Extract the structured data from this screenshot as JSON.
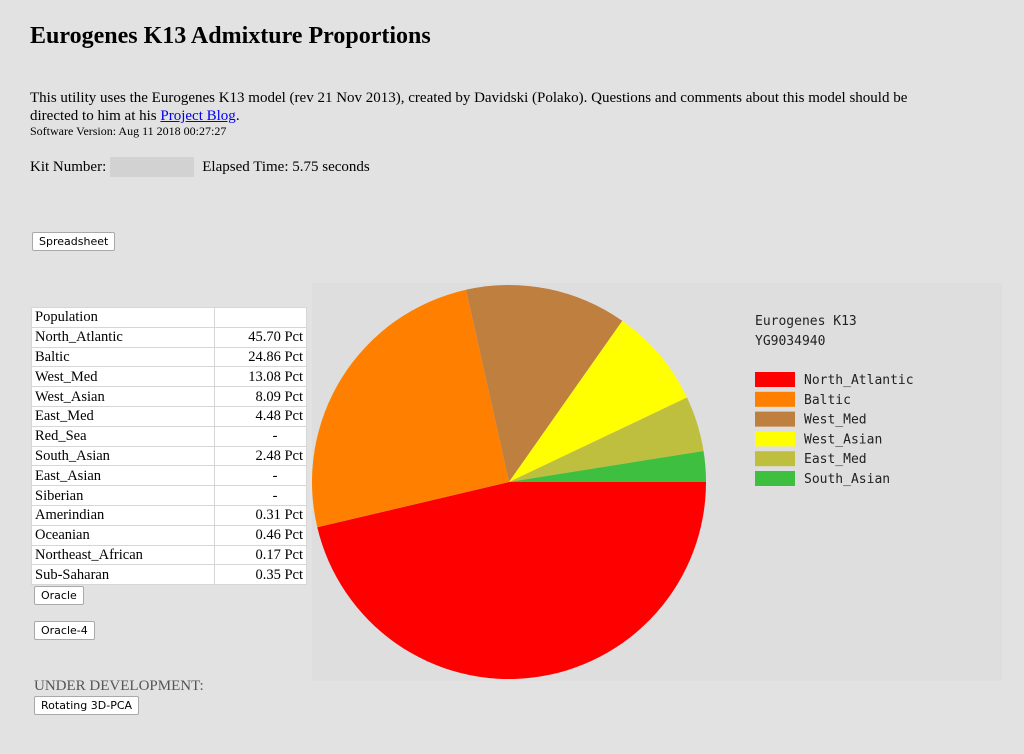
{
  "page": {
    "title": "Eurogenes K13 Admixture Proportions",
    "intro_before_link": "This utility uses the Eurogenes K13 model (rev 21 Nov 2013), created by Davidski (Polako). Questions and comments about this model should be directed to him at his ",
    "link_text": "Project Blog",
    "intro_after_link": ".",
    "software_version": "Software Version: Aug 11 2018 00:27:27",
    "kit_label": "Kit Number:",
    "elapsed_time": "Elapsed Time: 5.75 seconds",
    "under_development": "UNDER DEVELOPMENT:"
  },
  "buttons": {
    "spreadsheet": "Spreadsheet",
    "oracle": "Oracle",
    "oracle4": "Oracle-4",
    "rotating_pca": "Rotating 3D-PCA"
  },
  "table": {
    "header": "Population",
    "rows": [
      {
        "name": "North_Atlantic",
        "value": "45.70 Pct"
      },
      {
        "name": "Baltic",
        "value": "24.86 Pct"
      },
      {
        "name": "West_Med",
        "value": "13.08 Pct"
      },
      {
        "name": "West_Asian",
        "value": "8.09 Pct"
      },
      {
        "name": "East_Med",
        "value": "4.48 Pct"
      },
      {
        "name": "Red_Sea",
        "value": "-"
      },
      {
        "name": "South_Asian",
        "value": "2.48 Pct"
      },
      {
        "name": "East_Asian",
        "value": "-"
      },
      {
        "name": "Siberian",
        "value": "-"
      },
      {
        "name": "Amerindian",
        "value": "0.31 Pct"
      },
      {
        "name": "Oceanian",
        "value": "0.46 Pct"
      },
      {
        "name": "Northeast_African",
        "value": "0.17 Pct"
      },
      {
        "name": "Sub-Saharan",
        "value": "0.35 Pct"
      }
    ]
  },
  "chart_data": {
    "type": "pie",
    "title": "Eurogenes K13",
    "subtitle": "YG9034940",
    "legend_position": "right",
    "slices": [
      {
        "label": "North_Atlantic",
        "value": 45.7,
        "color": "#ff0000"
      },
      {
        "label": "Baltic",
        "value": 24.86,
        "color": "#ff8000"
      },
      {
        "label": "West_Med",
        "value": 13.08,
        "color": "#bf7f3f"
      },
      {
        "label": "West_Asian",
        "value": 8.09,
        "color": "#ffff00"
      },
      {
        "label": "East_Med",
        "value": 4.48,
        "color": "#bfbf3f"
      },
      {
        "label": "South_Asian",
        "value": 2.48,
        "color": "#3fbf3f"
      }
    ]
  }
}
